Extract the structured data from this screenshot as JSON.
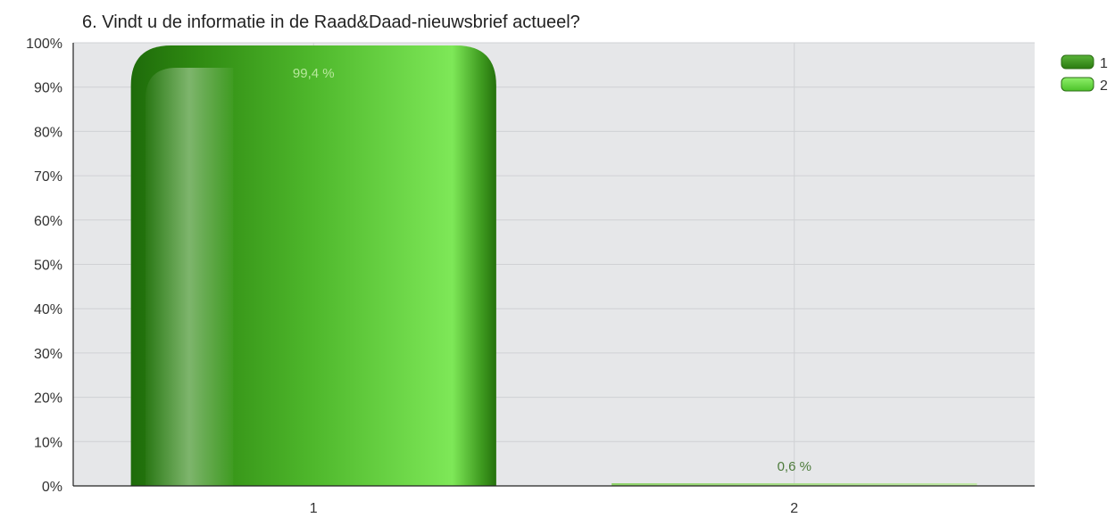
{
  "chart_data": {
    "type": "bar",
    "title": "6. Vindt u de informatie in de Raad&Daad-nieuwsbrief actueel?",
    "categories": [
      "1",
      "2"
    ],
    "values": [
      99.4,
      0.6
    ],
    "value_labels": [
      "99,4 %",
      "0,6 %"
    ],
    "ylim": [
      0,
      100
    ],
    "yticks": [
      0,
      10,
      20,
      30,
      40,
      50,
      60,
      70,
      80,
      90,
      100
    ],
    "ytick_suffix": "%",
    "grid": true,
    "legend": {
      "position": "top-right",
      "entries": [
        "1",
        "2"
      ]
    },
    "colors": {
      "series1": "#3e9a1f",
      "series2": "#6fd94a",
      "plot_bg": "#e6e7e9",
      "grid": "#cfd1d4"
    }
  }
}
